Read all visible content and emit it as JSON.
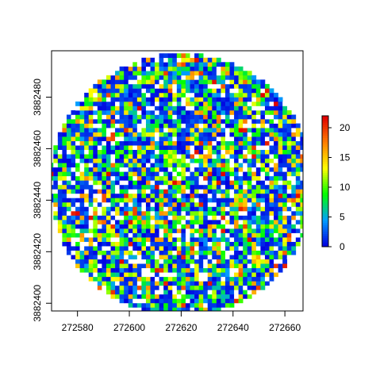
{
  "chart_data": {
    "type": "heatmap",
    "title": "",
    "xlabel": "",
    "ylabel": "",
    "xlim": [
      272570,
      272667
    ],
    "ylim": [
      3882397,
      3882498
    ],
    "x_ticks": [
      272580,
      272600,
      272620,
      272640,
      272660
    ],
    "x_tick_labels": [
      "272580",
      "272600",
      "272620",
      "272640",
      "272660"
    ],
    "y_ticks": [
      3882400,
      3882420,
      3882440,
      3882460,
      3882480
    ],
    "y_tick_labels": [
      "3882400",
      "3882420",
      "3882440",
      "3882460",
      "3882480"
    ],
    "raster": {
      "description": "circular raster of cell values",
      "center": [
        272620,
        3882446
      ],
      "radius": 51,
      "cell_size": 1.7,
      "value_range": [
        0,
        22
      ]
    },
    "legend": {
      "placement": "right",
      "ticks": [
        0,
        5,
        10,
        15,
        20
      ],
      "tick_labels": [
        "0",
        "5",
        "10",
        "15",
        "20"
      ],
      "max": 22,
      "colors": [
        "#0000e0",
        "#00a0ff",
        "#00ff00",
        "#ffff00",
        "#ff8000",
        "#e00000"
      ]
    },
    "grid": false,
    "colors": {
      "background": "#ffffff",
      "frame": "#000000",
      "nodata": "#ffffff"
    }
  }
}
